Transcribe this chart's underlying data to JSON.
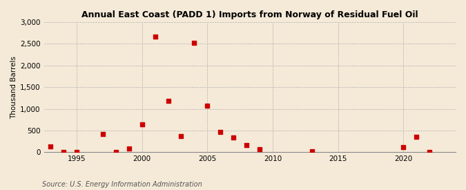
{
  "title": "Annual East Coast (PADD 1) Imports from Norway of Residual Fuel Oil",
  "ylabel": "Thousand Barrels",
  "source": "Source: U.S. Energy Information Administration",
  "background_color": "#f5ead8",
  "marker_color": "#cc0000",
  "years": [
    1993,
    1994,
    1995,
    1997,
    1998,
    1999,
    2000,
    2001,
    2002,
    2003,
    2004,
    2005,
    2006,
    2007,
    2008,
    2009,
    2013,
    2020,
    2021,
    2022
  ],
  "values": [
    140,
    5,
    8,
    420,
    10,
    90,
    640,
    2660,
    1190,
    380,
    2520,
    1080,
    470,
    340,
    170,
    65,
    15,
    120,
    360,
    5
  ],
  "ylim": [
    0,
    3000
  ],
  "yticks": [
    0,
    500,
    1000,
    1500,
    2000,
    2500,
    3000
  ],
  "xlim": [
    1992.5,
    2024
  ],
  "xticks": [
    1995,
    2000,
    2005,
    2010,
    2015,
    2020
  ]
}
